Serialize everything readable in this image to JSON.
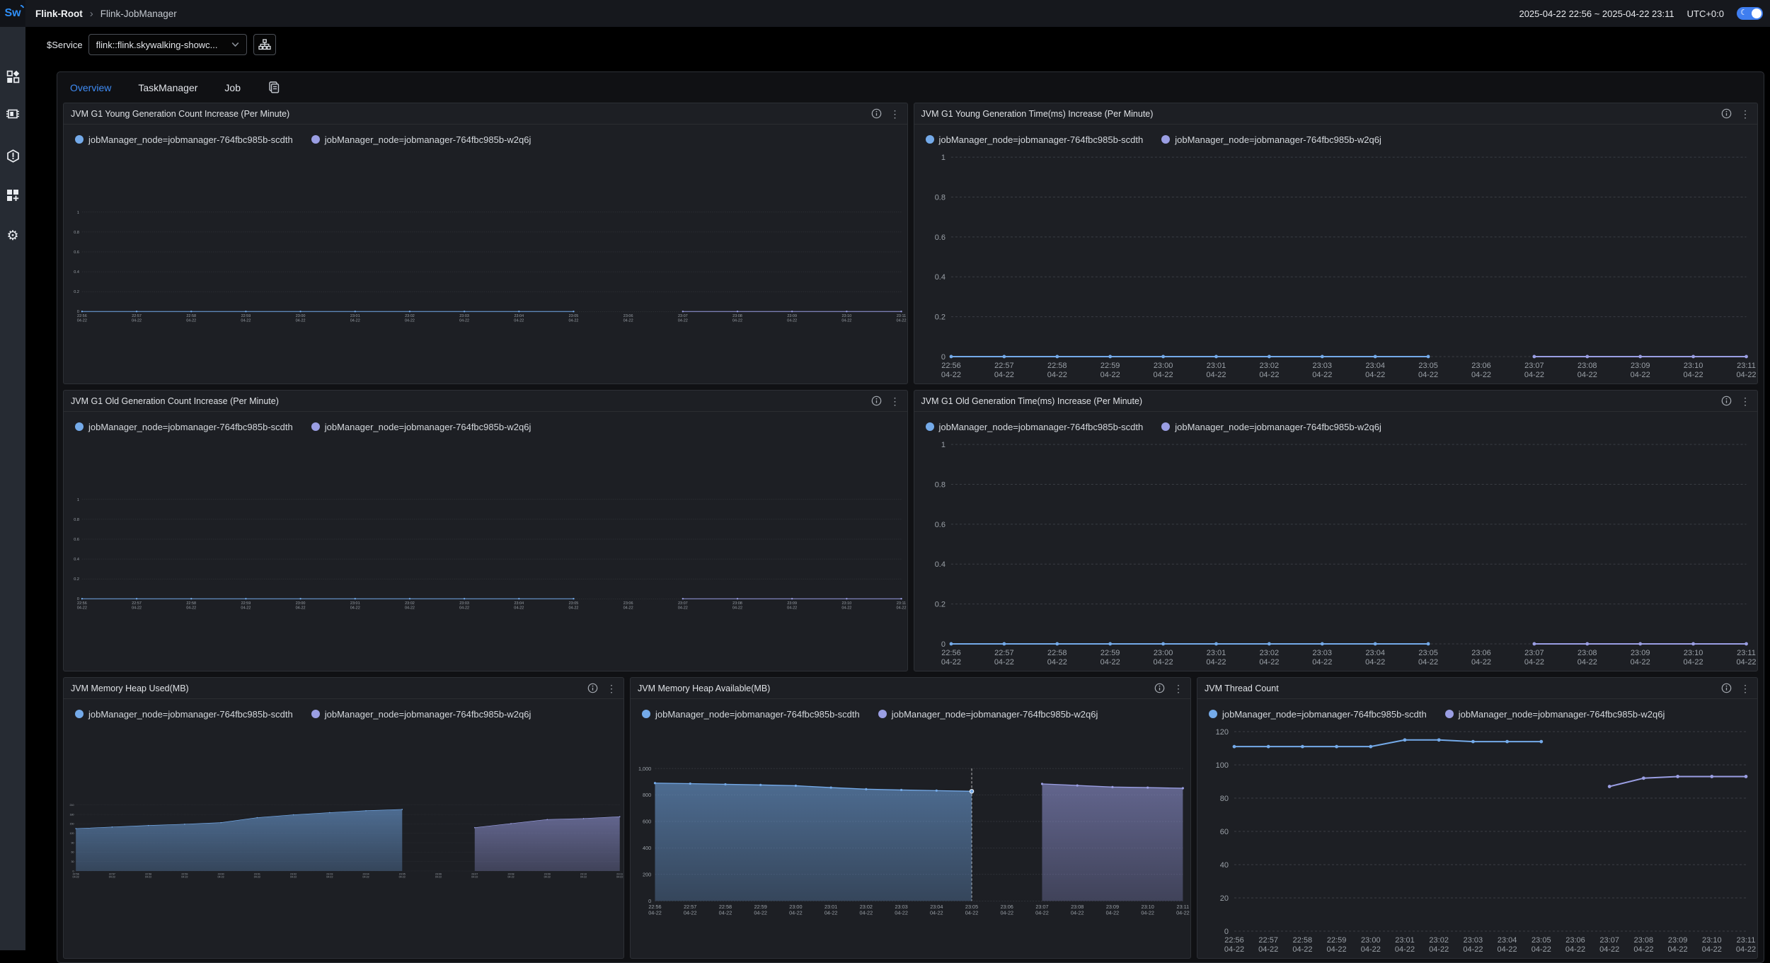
{
  "app": {
    "logo": "Sw",
    "breadcrumb": {
      "root": "Flink-Root",
      "separator": "›",
      "current": "Flink-JobManager"
    },
    "time_range": "2025-04-22 22:56 ~ 2025-04-22 23:11",
    "timezone": "UTC+0:0",
    "theme_toggle": {
      "icon": "moon-icon",
      "state": "on"
    }
  },
  "sidebar": {
    "items": [
      {
        "icon": "dashboard-icon"
      },
      {
        "icon": "layers-chip-icon"
      },
      {
        "icon": "alarm-hexagon-icon"
      },
      {
        "icon": "marketplace-icon"
      },
      {
        "icon": "settings-gear-icon"
      }
    ]
  },
  "service_bar": {
    "label": "$Service",
    "selected": "flink::flink.skywalking-showc...",
    "chevron_icon": "chevron-down-icon",
    "topology_icon": "topology-icon"
  },
  "tabs": [
    {
      "label": "Overview",
      "active": true
    },
    {
      "label": "TaskManager",
      "active": false
    },
    {
      "label": "Job",
      "active": false
    }
  ],
  "tabbar_icons": {
    "copy": "copy-dashboard-icon"
  },
  "panel_action_icons": {
    "info": "info-icon",
    "menu": "kebab-menu-icon"
  },
  "colors": {
    "series_blue": "#74aae9",
    "series_purple": "#9a9ee3",
    "accent_blue": "#3f8cf5",
    "toggle_blue": "#3f7ef0"
  },
  "layout": {
    "rows": [
      [
        0,
        1
      ],
      [
        2,
        3
      ],
      [
        4,
        5,
        6
      ]
    ]
  },
  "chart_shared": {
    "x_times": [
      "22:56",
      "22:57",
      "22:58",
      "22:59",
      "23:00",
      "23:01",
      "23:02",
      "23:03",
      "23:04",
      "23:05",
      "23:06",
      "23:07",
      "23:08",
      "23:09",
      "23:10",
      "23:11"
    ],
    "x_date": "04-22",
    "grid": "dashed",
    "legend_position": "top"
  },
  "chart_data": [
    {
      "type": "line",
      "area": false,
      "title": "JVM G1 Young Generation Count Increase (Per Minute)",
      "ymax": 1,
      "yticks": [
        [
          0,
          "0"
        ],
        [
          0.2,
          "0.2"
        ],
        [
          0.4,
          "0.4"
        ],
        [
          0.6,
          "0.6"
        ],
        [
          0.8,
          "0.8"
        ],
        [
          1,
          "1"
        ]
      ],
      "series": [
        {
          "name": "jobManager_node=jobmanager-764fbc985b-scdth",
          "color": "#74aae9",
          "values": [
            0,
            0,
            0,
            0,
            0,
            0,
            0,
            0,
            0,
            0,
            null,
            null,
            null,
            null,
            null,
            null
          ]
        },
        {
          "name": "jobManager_node=jobmanager-764fbc985b-w2q6j",
          "color": "#9a9ee3",
          "values": [
            null,
            null,
            null,
            null,
            null,
            null,
            null,
            null,
            null,
            null,
            null,
            0,
            0,
            0,
            0,
            0
          ]
        }
      ]
    },
    {
      "type": "line",
      "area": false,
      "title": "JVM G1 Young Generation Time(ms) Increase (Per Minute)",
      "ymax": 1,
      "yticks": [
        [
          0,
          "0"
        ],
        [
          0.2,
          "0.2"
        ],
        [
          0.4,
          "0.4"
        ],
        [
          0.6,
          "0.6"
        ],
        [
          0.8,
          "0.8"
        ],
        [
          1,
          "1"
        ]
      ],
      "series": [
        {
          "name": "jobManager_node=jobmanager-764fbc985b-scdth",
          "color": "#74aae9",
          "values": [
            0,
            0,
            0,
            0,
            0,
            0,
            0,
            0,
            0,
            0,
            null,
            null,
            null,
            null,
            null,
            null
          ]
        },
        {
          "name": "jobManager_node=jobmanager-764fbc985b-w2q6j",
          "color": "#9a9ee3",
          "values": [
            null,
            null,
            null,
            null,
            null,
            null,
            null,
            null,
            null,
            null,
            null,
            0,
            0,
            0,
            0,
            0
          ]
        }
      ]
    },
    {
      "type": "line",
      "area": false,
      "title": "JVM G1 Old Generation Count Increase (Per Minute)",
      "ymax": 1,
      "yticks": [
        [
          0,
          "0"
        ],
        [
          0.2,
          "0.2"
        ],
        [
          0.4,
          "0.4"
        ],
        [
          0.6,
          "0.6"
        ],
        [
          0.8,
          "0.8"
        ],
        [
          1,
          "1"
        ]
      ],
      "series": [
        {
          "name": "jobManager_node=jobmanager-764fbc985b-scdth",
          "color": "#74aae9",
          "values": [
            0,
            0,
            0,
            0,
            0,
            0,
            0,
            0,
            0,
            0,
            null,
            null,
            null,
            null,
            null,
            null
          ]
        },
        {
          "name": "jobManager_node=jobmanager-764fbc985b-w2q6j",
          "color": "#9a9ee3",
          "values": [
            null,
            null,
            null,
            null,
            null,
            null,
            null,
            null,
            null,
            null,
            null,
            0,
            0,
            0,
            0,
            0
          ]
        }
      ]
    },
    {
      "type": "line",
      "area": false,
      "title": "JVM G1 Old Generation Time(ms) Increase (Per Minute)",
      "ymax": 1,
      "yticks": [
        [
          0,
          "0"
        ],
        [
          0.2,
          "0.2"
        ],
        [
          0.4,
          "0.4"
        ],
        [
          0.6,
          "0.6"
        ],
        [
          0.8,
          "0.8"
        ],
        [
          1,
          "1"
        ]
      ],
      "series": [
        {
          "name": "jobManager_node=jobmanager-764fbc985b-scdth",
          "color": "#74aae9",
          "values": [
            0,
            0,
            0,
            0,
            0,
            0,
            0,
            0,
            0,
            0,
            null,
            null,
            null,
            null,
            null,
            null
          ]
        },
        {
          "name": "jobManager_node=jobmanager-764fbc985b-w2q6j",
          "color": "#9a9ee3",
          "values": [
            null,
            null,
            null,
            null,
            null,
            null,
            null,
            null,
            null,
            null,
            null,
            0,
            0,
            0,
            0,
            0
          ]
        }
      ]
    },
    {
      "type": "area",
      "area": true,
      "title": "JVM Memory Heap Used(MB)",
      "ymax": 210,
      "yticks": [
        [
          0,
          "0"
        ],
        [
          30,
          "30"
        ],
        [
          60,
          "60"
        ],
        [
          90,
          "90"
        ],
        [
          120,
          "120"
        ],
        [
          150,
          "150"
        ],
        [
          180,
          "180"
        ],
        [
          210,
          "210"
        ]
      ],
      "series": [
        {
          "name": "jobManager_node=jobmanager-764fbc985b-scdth",
          "color": "#74aae9",
          "values": [
            135,
            140,
            145,
            149,
            154,
            170,
            179,
            186,
            192,
            196,
            null,
            null,
            null,
            null,
            null,
            null
          ]
        },
        {
          "name": "jobManager_node=jobmanager-764fbc985b-w2q6j",
          "color": "#9a9ee3",
          "values": [
            null,
            null,
            null,
            null,
            null,
            null,
            null,
            null,
            null,
            null,
            null,
            138,
            151,
            164,
            167,
            173
          ]
        }
      ]
    },
    {
      "type": "area",
      "area": true,
      "title": "JVM Memory Heap Available(MB)",
      "ymax": 1000,
      "yticks": [
        [
          0,
          "0"
        ],
        [
          200,
          "200"
        ],
        [
          400,
          "400"
        ],
        [
          600,
          "600"
        ],
        [
          800,
          "800"
        ],
        [
          1000,
          "1,000"
        ]
      ],
      "marker": {
        "index": 9,
        "series": 0,
        "label": "hover-crosshair"
      },
      "series": [
        {
          "name": "jobManager_node=jobmanager-764fbc985b-scdth",
          "color": "#74aae9",
          "values": [
            890,
            886,
            881,
            876,
            870,
            856,
            844,
            838,
            833,
            828,
            null,
            null,
            null,
            null,
            null,
            null
          ]
        },
        {
          "name": "jobManager_node=jobmanager-764fbc985b-w2q6j",
          "color": "#9a9ee3",
          "values": [
            null,
            null,
            null,
            null,
            null,
            null,
            null,
            null,
            null,
            null,
            null,
            884,
            872,
            860,
            856,
            851
          ]
        }
      ]
    },
    {
      "type": "line",
      "area": false,
      "title": "JVM Thread Count",
      "ymax": 120,
      "yticks": [
        [
          0,
          "0"
        ],
        [
          20,
          "20"
        ],
        [
          40,
          "40"
        ],
        [
          60,
          "60"
        ],
        [
          80,
          "80"
        ],
        [
          100,
          "100"
        ],
        [
          120,
          "120"
        ]
      ],
      "series": [
        {
          "name": "jobManager_node=jobmanager-764fbc985b-scdth",
          "color": "#74aae9",
          "values": [
            111,
            111,
            111,
            111,
            111,
            115,
            115,
            114,
            114,
            114,
            null,
            null,
            null,
            null,
            null,
            null
          ]
        },
        {
          "name": "jobManager_node=jobmanager-764fbc985b-w2q6j",
          "color": "#9a9ee3",
          "values": [
            null,
            null,
            null,
            null,
            null,
            null,
            null,
            null,
            null,
            null,
            null,
            87,
            92,
            93,
            93,
            93
          ]
        }
      ]
    }
  ]
}
